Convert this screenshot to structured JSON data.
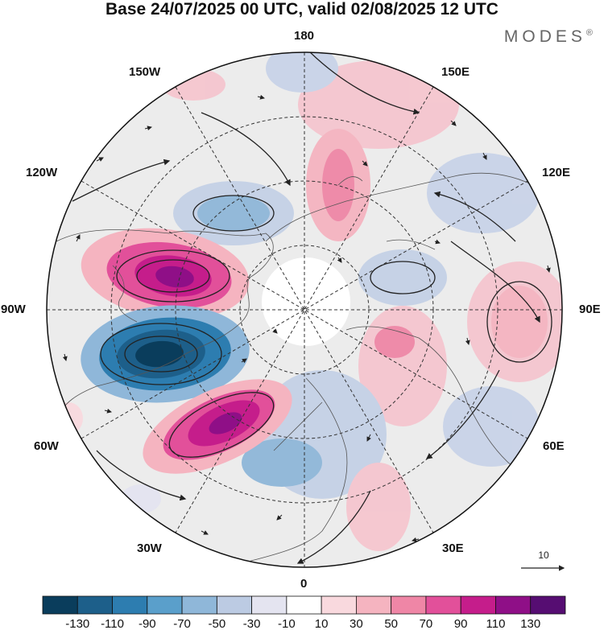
{
  "header": {
    "title": "Base 24/07/2025 00 UTC, valid 02/08/2025 12 UTC",
    "brand": "MODES",
    "brand_mark": "®"
  },
  "map": {
    "projection": "north-polar-stereographic",
    "longitude_labels": [
      {
        "id": "180",
        "text": "180"
      },
      {
        "id": "150e",
        "text": "150E"
      },
      {
        "id": "120e",
        "text": "120E"
      },
      {
        "id": "90e",
        "text": "90E"
      },
      {
        "id": "60e",
        "text": "60E"
      },
      {
        "id": "30e",
        "text": "30E"
      },
      {
        "id": "0",
        "text": "0"
      },
      {
        "id": "30w",
        "text": "30W"
      },
      {
        "id": "60w",
        "text": "60W"
      },
      {
        "id": "90w",
        "text": "90W"
      },
      {
        "id": "120w",
        "text": "120W"
      },
      {
        "id": "150w",
        "text": "150W"
      }
    ],
    "vector_reference": {
      "label": "10"
    }
  },
  "colorbar": {
    "colors": [
      "#0a3d5c",
      "#1d5f8a",
      "#2d7db0",
      "#5a9fcb",
      "#8fb7d9",
      "#bccbe3",
      "#e4e4f0",
      "#ffffff",
      "#f9d9de",
      "#f5b4c0",
      "#ef86a6",
      "#e2509a",
      "#c51d8b",
      "#8f0f87",
      "#560d72"
    ],
    "tick_labels": [
      "-130",
      "-110",
      "-90",
      "-70",
      "-50",
      "-30",
      "-10",
      "10",
      "30",
      "50",
      "70",
      "90",
      "110",
      "130"
    ]
  }
}
